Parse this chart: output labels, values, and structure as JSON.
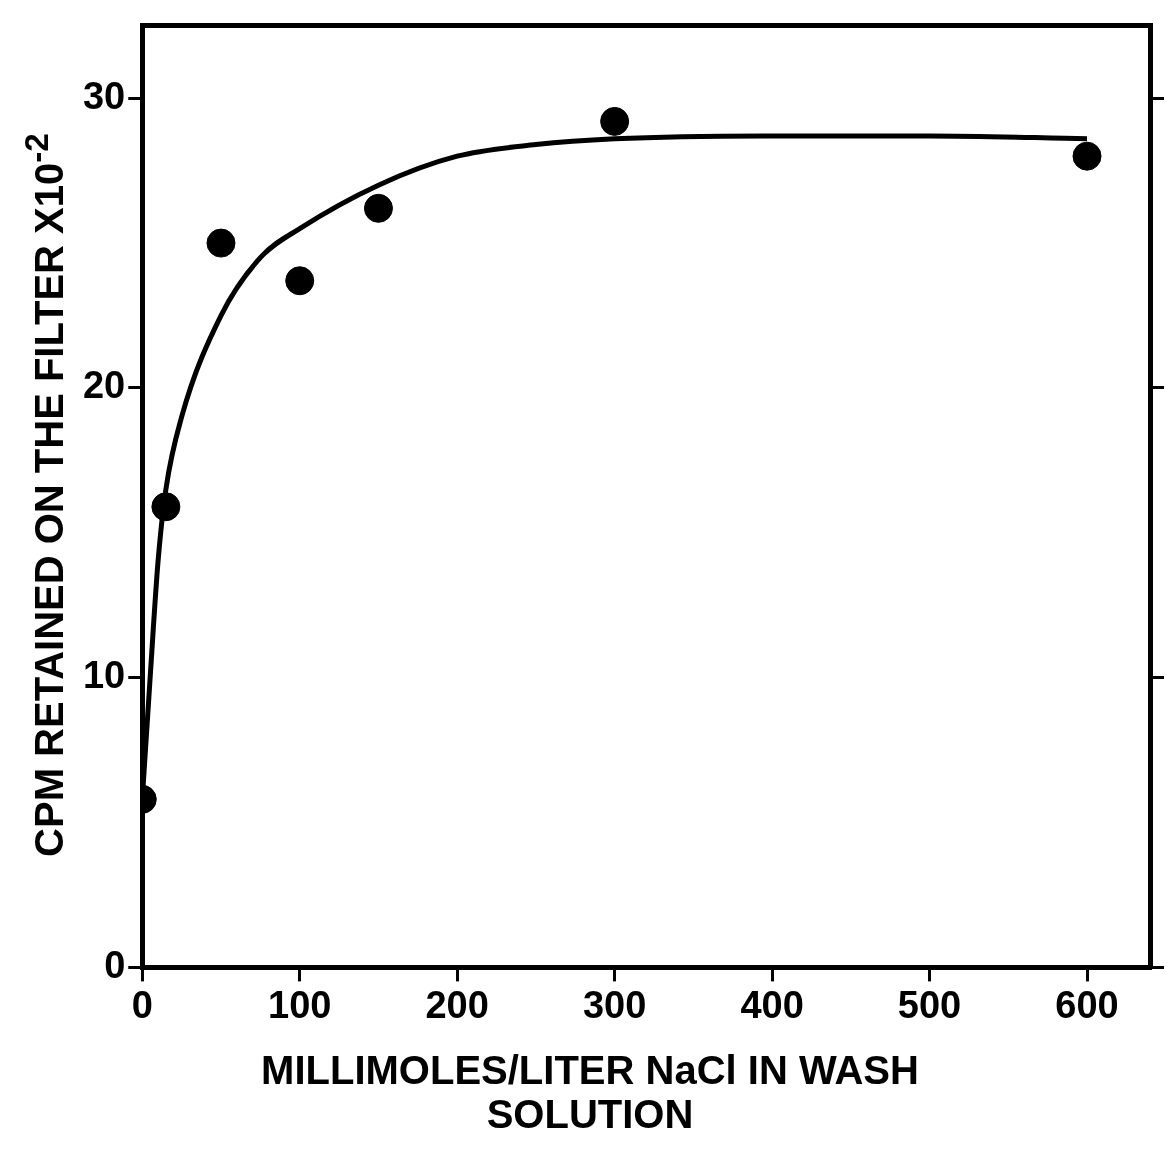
{
  "chart_data": {
    "type": "scatter",
    "xlabel": "MILLIMOLES/LITER NaCl IN WASH SOLUTION",
    "ylabel": "CPM RETAINED ON THE FILTER X10$^{-2}$",
    "xlim": [
      0,
      640
    ],
    "xticks": [
      0,
      100,
      200,
      300,
      400,
      500,
      600
    ],
    "ylim": [
      0,
      32.5
    ],
    "yticks": [
      0,
      10,
      20,
      30
    ],
    "grid": false,
    "legend": false,
    "series": [
      {
        "type": "scatter",
        "color": "#000000",
        "marker": "circle",
        "x": [
          0,
          15,
          50,
          100,
          150,
          300,
          600
        ],
        "values": [
          5.8,
          15.9,
          25.0,
          23.7,
          26.2,
          29.2,
          28.0
        ]
      },
      {
        "type": "line",
        "color": "#000000",
        "marker": "none",
        "line_style": "solid",
        "x": [
          0,
          5,
          10,
          15,
          25,
          50,
          75,
          100,
          150,
          200,
          250,
          300,
          400,
          500,
          600
        ],
        "values": [
          5.8,
          10,
          14,
          16.5,
          19,
          22.5,
          24.5,
          25.5,
          27,
          28,
          28.4,
          28.6,
          28.7,
          28.7,
          28.6
        ]
      }
    ]
  }
}
